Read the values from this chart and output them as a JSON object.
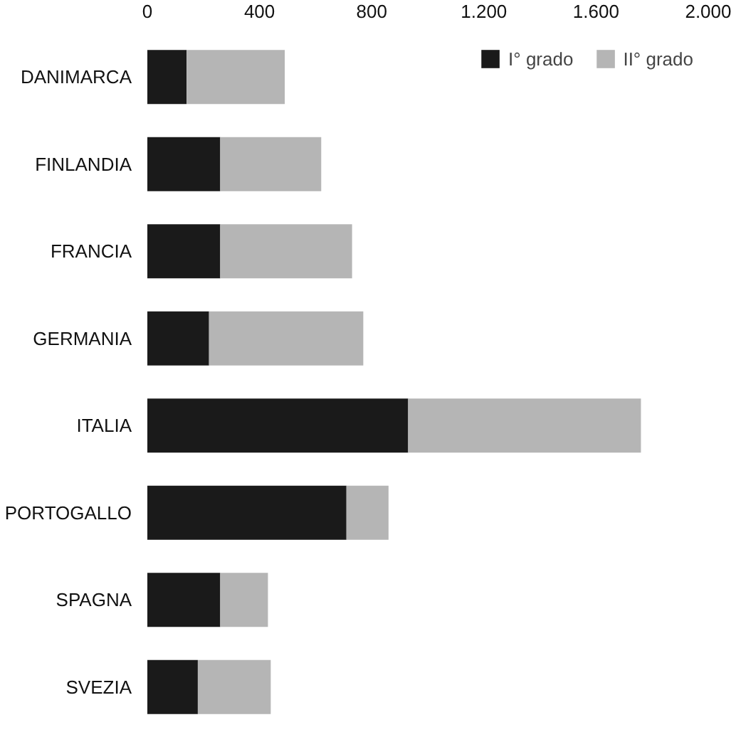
{
  "chart_data": {
    "type": "bar",
    "orientation": "horizontal",
    "stacked": true,
    "categories": [
      "DANIMARCA",
      "FINLANDIA",
      "FRANCIA",
      "GERMANIA",
      "ITALIA",
      "PORTOGALLO",
      "SPAGNA",
      "SVEZIA"
    ],
    "series": [
      {
        "name": "I° grado",
        "color": "#1a1a1a",
        "values": [
          140,
          260,
          260,
          220,
          930,
          710,
          260,
          180
        ]
      },
      {
        "name": "II° grado",
        "color": "#b5b5b5",
        "values": [
          350,
          360,
          470,
          550,
          830,
          150,
          170,
          260
        ]
      }
    ],
    "xlim": [
      0,
      2000
    ],
    "xticks": [
      0,
      400,
      800,
      {
        "value": 1200,
        "label": "1.200"
      },
      {
        "value": 1600,
        "label": "1.600"
      },
      {
        "value": 2000,
        "label": "2.000"
      }
    ],
    "grid": false,
    "legend": "top right"
  }
}
